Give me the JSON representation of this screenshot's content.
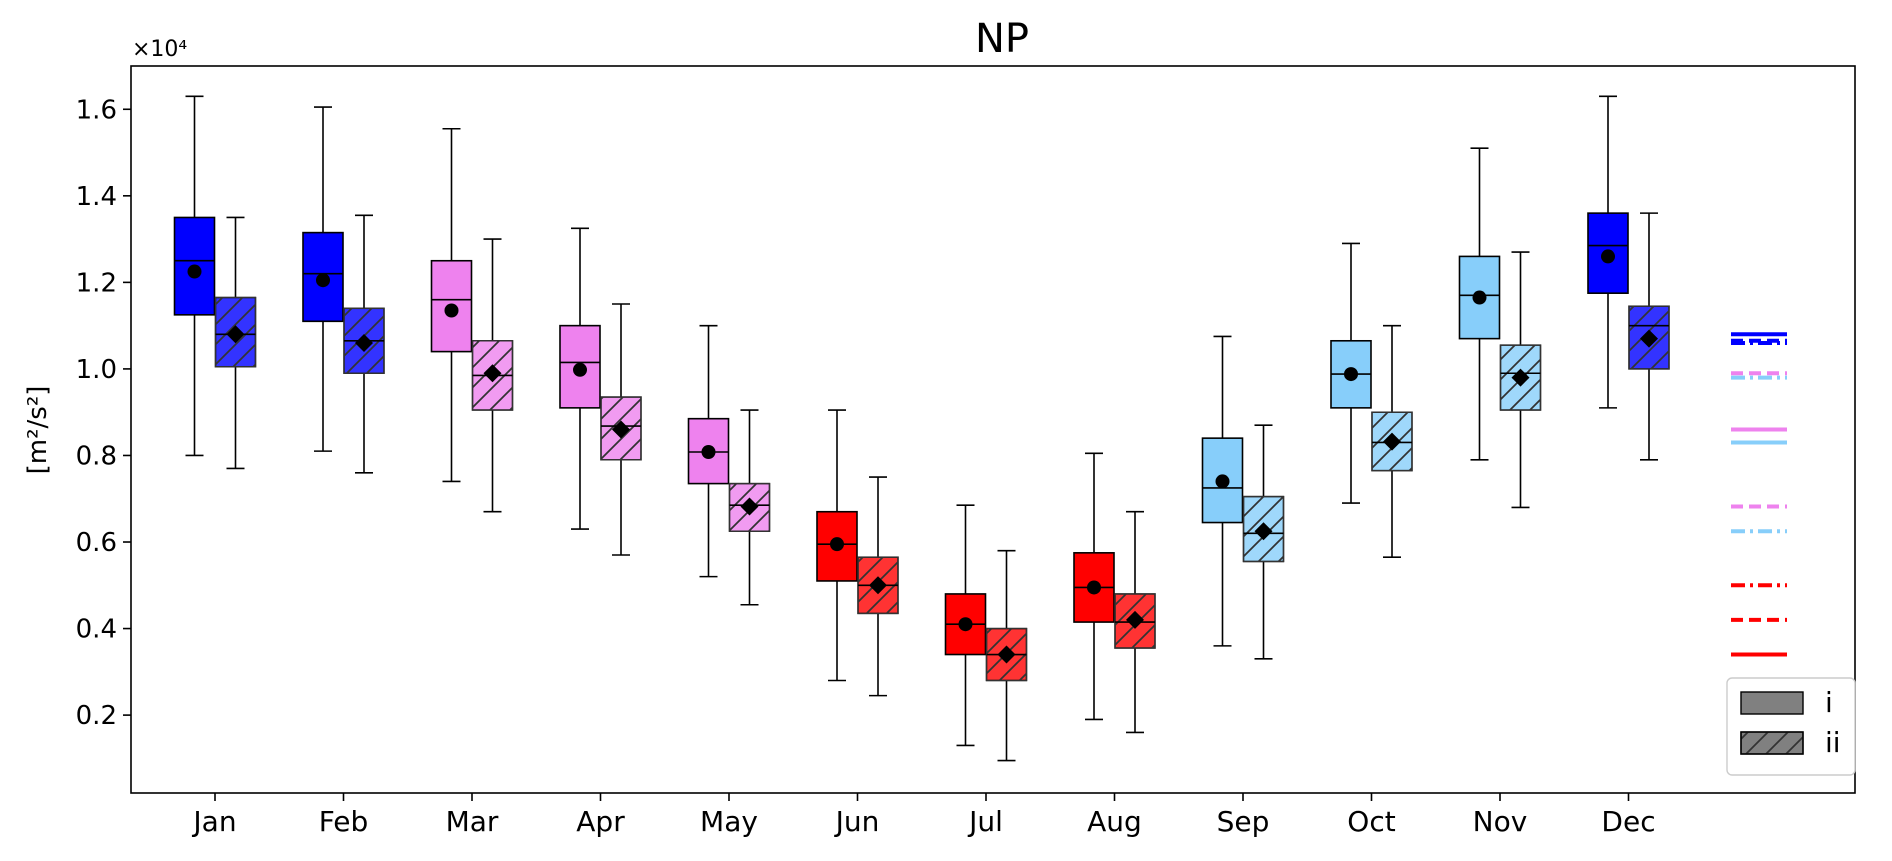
{
  "chart_data": {
    "type": "box",
    "title": "NP",
    "ylabel": "[m²/s²]",
    "y_multiplier": "×10⁴",
    "ylim": [
      0.02,
      1.7
    ],
    "yticks": [
      0.2,
      0.4,
      0.6,
      0.8,
      1.0,
      1.2,
      1.4,
      1.6
    ],
    "ytick_labels": [
      "0.2",
      "0.4",
      "0.6",
      "0.8",
      "1.0",
      "1.2",
      "1.4",
      "1.6"
    ],
    "categories": [
      "Jan",
      "Feb",
      "Mar",
      "Apr",
      "May",
      "Jun",
      "Jul",
      "Aug",
      "Sep",
      "Oct",
      "Nov",
      "Dec"
    ],
    "month_colors": [
      "#0000ff",
      "#0000ff",
      "#ee82ee",
      "#ee82ee",
      "#ee82ee",
      "#ff0000",
      "#ff0000",
      "#ff0000",
      "#87cefa",
      "#87cefa",
      "#87cefa",
      "#0000ff"
    ],
    "series": [
      {
        "name": "i",
        "hatch": false,
        "mean_marker": "circle",
        "boxes": [
          {
            "whislo": 0.8,
            "q1": 1.125,
            "med": 1.25,
            "q3": 1.35,
            "whishi": 1.63,
            "mean": 1.225
          },
          {
            "whislo": 0.81,
            "q1": 1.11,
            "med": 1.22,
            "q3": 1.315,
            "whishi": 1.605,
            "mean": 1.205
          },
          {
            "whislo": 0.74,
            "q1": 1.04,
            "med": 1.16,
            "q3": 1.25,
            "whishi": 1.555,
            "mean": 1.135
          },
          {
            "whislo": 0.63,
            "q1": 0.91,
            "med": 1.015,
            "q3": 1.1,
            "whishi": 1.325,
            "mean": 0.998
          },
          {
            "whislo": 0.52,
            "q1": 0.735,
            "med": 0.808,
            "q3": 0.885,
            "whishi": 1.1,
            "mean": 0.808
          },
          {
            "whislo": 0.28,
            "q1": 0.51,
            "med": 0.595,
            "q3": 0.67,
            "whishi": 0.905,
            "mean": 0.595
          },
          {
            "whislo": 0.13,
            "q1": 0.34,
            "med": 0.41,
            "q3": 0.48,
            "whishi": 0.685,
            "mean": 0.41
          },
          {
            "whislo": 0.19,
            "q1": 0.415,
            "med": 0.495,
            "q3": 0.575,
            "whishi": 0.805,
            "mean": 0.495
          },
          {
            "whislo": 0.36,
            "q1": 0.645,
            "med": 0.725,
            "q3": 0.84,
            "whishi": 1.075,
            "mean": 0.74
          },
          {
            "whislo": 0.69,
            "q1": 0.91,
            "med": 0.988,
            "q3": 1.065,
            "whishi": 1.29,
            "mean": 0.988
          },
          {
            "whislo": 0.79,
            "q1": 1.07,
            "med": 1.17,
            "q3": 1.26,
            "whishi": 1.51,
            "mean": 1.165
          },
          {
            "whislo": 0.91,
            "q1": 1.175,
            "med": 1.285,
            "q3": 1.36,
            "whishi": 1.63,
            "mean": 1.26
          }
        ]
      },
      {
        "name": "ii",
        "hatch": true,
        "mean_marker": "diamond",
        "boxes": [
          {
            "whislo": 0.77,
            "q1": 1.005,
            "med": 1.08,
            "q3": 1.165,
            "whishi": 1.35,
            "mean": 1.08
          },
          {
            "whislo": 0.76,
            "q1": 0.99,
            "med": 1.065,
            "q3": 1.14,
            "whishi": 1.355,
            "mean": 1.06
          },
          {
            "whislo": 0.67,
            "q1": 0.905,
            "med": 0.985,
            "q3": 1.065,
            "whishi": 1.3,
            "mean": 0.99
          },
          {
            "whislo": 0.57,
            "q1": 0.79,
            "med": 0.868,
            "q3": 0.935,
            "whishi": 1.15,
            "mean": 0.86
          },
          {
            "whislo": 0.455,
            "q1": 0.625,
            "med": 0.685,
            "q3": 0.735,
            "whishi": 0.905,
            "mean": 0.682
          },
          {
            "whislo": 0.245,
            "q1": 0.435,
            "med": 0.5,
            "q3": 0.565,
            "whishi": 0.75,
            "mean": 0.5
          },
          {
            "whislo": 0.095,
            "q1": 0.28,
            "med": 0.34,
            "q3": 0.4,
            "whishi": 0.58,
            "mean": 0.34
          },
          {
            "whislo": 0.16,
            "q1": 0.355,
            "med": 0.415,
            "q3": 0.48,
            "whishi": 0.67,
            "mean": 0.42
          },
          {
            "whislo": 0.33,
            "q1": 0.555,
            "med": 0.62,
            "q3": 0.705,
            "whishi": 0.87,
            "mean": 0.625
          },
          {
            "whislo": 0.565,
            "q1": 0.765,
            "med": 0.83,
            "q3": 0.9,
            "whishi": 1.1,
            "mean": 0.832
          },
          {
            "whislo": 0.68,
            "q1": 0.905,
            "med": 0.99,
            "q3": 1.055,
            "whishi": 1.27,
            "mean": 0.98
          },
          {
            "whislo": 0.79,
            "q1": 1.0,
            "med": 1.1,
            "q3": 1.145,
            "whishi": 1.36,
            "mean": 1.07
          }
        ]
      }
    ],
    "reference_lines": [
      {
        "value": 1.08,
        "color": "#0000ff",
        "style": "solid"
      },
      {
        "value": 1.065,
        "color": "#0000ff",
        "style": "dashed"
      },
      {
        "value": 1.06,
        "color": "#0000ff",
        "style": "dashdot"
      },
      {
        "value": 0.99,
        "color": "#ee82ee",
        "style": "dashed"
      },
      {
        "value": 0.98,
        "color": "#87cefa",
        "style": "dashdot"
      },
      {
        "value": 0.86,
        "color": "#ee82ee",
        "style": "solid"
      },
      {
        "value": 0.83,
        "color": "#87cefa",
        "style": "solid"
      },
      {
        "value": 0.682,
        "color": "#ee82ee",
        "style": "dashed"
      },
      {
        "value": 0.625,
        "color": "#87cefa",
        "style": "dashdot"
      },
      {
        "value": 0.5,
        "color": "#ff0000",
        "style": "dashdot"
      },
      {
        "value": 0.42,
        "color": "#ff0000",
        "style": "dashed"
      },
      {
        "value": 0.34,
        "color": "#ff0000",
        "style": "solid"
      }
    ],
    "legend": {
      "placement": "lower-right",
      "entries": [
        {
          "label": "i",
          "hatch": false,
          "color": "#808080"
        },
        {
          "label": "ii",
          "hatch": true,
          "color": "#808080"
        }
      ]
    },
    "grid": false
  }
}
